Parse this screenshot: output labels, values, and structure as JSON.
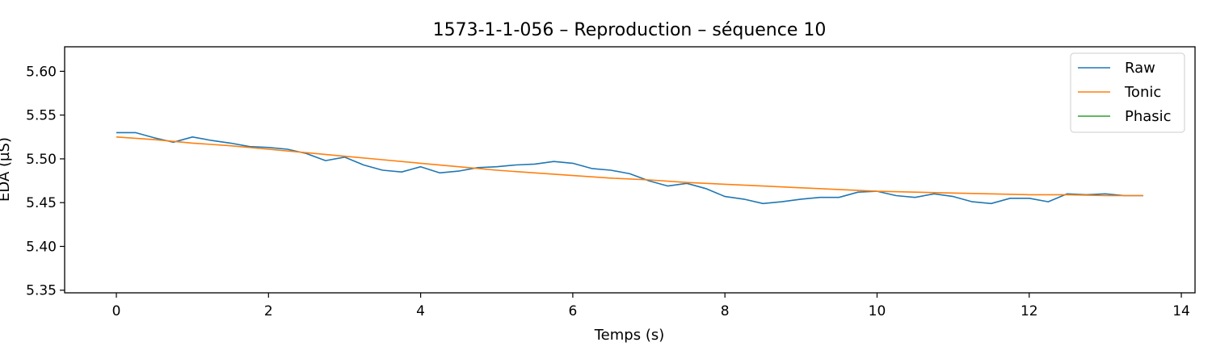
{
  "chart_data": {
    "type": "line",
    "title": "1573-1-1-056 – Reproduction – séquence 10",
    "xlabel": "Temps (s)",
    "ylabel": "EDA (µS)",
    "xlim": [
      -0.68,
      14.18
    ],
    "ylim": [
      5.347,
      5.628
    ],
    "xticks": [
      0,
      2,
      4,
      6,
      8,
      10,
      12,
      14
    ],
    "yticks": [
      5.35,
      5.4,
      5.45,
      5.5,
      5.55,
      5.6
    ],
    "xtick_labels": [
      "0",
      "2",
      "4",
      "6",
      "8",
      "10",
      "12",
      "14"
    ],
    "ytick_labels": [
      "5.35",
      "5.40",
      "5.45",
      "5.50",
      "5.55",
      "5.60"
    ],
    "grid": false,
    "legend_position": "top-right",
    "series": [
      {
        "name": "Raw",
        "color": "#1f77b4",
        "x": [
          0.0,
          0.25,
          0.5,
          0.75,
          1.0,
          1.25,
          1.5,
          1.75,
          2.0,
          2.25,
          2.5,
          2.75,
          3.0,
          3.25,
          3.5,
          3.75,
          4.0,
          4.25,
          4.5,
          4.75,
          5.0,
          5.25,
          5.5,
          5.75,
          6.0,
          6.25,
          6.5,
          6.75,
          7.0,
          7.25,
          7.5,
          7.75,
          8.0,
          8.25,
          8.5,
          8.75,
          9.0,
          9.25,
          9.5,
          9.75,
          10.0,
          10.25,
          10.5,
          10.75,
          11.0,
          11.25,
          11.5,
          11.75,
          12.0,
          12.25,
          12.5,
          12.75,
          13.0,
          13.25,
          13.5
        ],
        "values": [
          5.53,
          5.53,
          5.524,
          5.519,
          5.525,
          5.521,
          5.518,
          5.514,
          5.513,
          5.511,
          5.506,
          5.498,
          5.502,
          5.493,
          5.487,
          5.485,
          5.491,
          5.484,
          5.486,
          5.49,
          5.491,
          5.493,
          5.494,
          5.497,
          5.495,
          5.489,
          5.487,
          5.483,
          5.475,
          5.469,
          5.472,
          5.466,
          5.457,
          5.454,
          5.449,
          5.451,
          5.454,
          5.456,
          5.456,
          5.462,
          5.463,
          5.458,
          5.456,
          5.46,
          5.457,
          5.451,
          5.449,
          5.455,
          5.455,
          5.451,
          5.46,
          5.459,
          5.46,
          5.458,
          5.458
        ]
      },
      {
        "name": "Tonic",
        "color": "#ff7f0e",
        "x": [
          0.0,
          0.5,
          1.0,
          1.5,
          2.0,
          2.5,
          3.0,
          3.5,
          4.0,
          4.5,
          5.0,
          5.5,
          6.0,
          6.5,
          7.0,
          7.5,
          8.0,
          8.5,
          9.0,
          9.5,
          10.0,
          10.5,
          11.0,
          11.5,
          12.0,
          12.5,
          13.0,
          13.5
        ],
        "values": [
          5.525,
          5.522,
          5.518,
          5.515,
          5.511,
          5.507,
          5.503,
          5.499,
          5.495,
          5.491,
          5.487,
          5.484,
          5.481,
          5.478,
          5.476,
          5.473,
          5.471,
          5.469,
          5.467,
          5.465,
          5.463,
          5.462,
          5.461,
          5.46,
          5.459,
          5.459,
          5.458,
          5.458
        ]
      },
      {
        "name": "Phasic",
        "color": "#2ca02c",
        "x": [],
        "values": []
      }
    ]
  }
}
